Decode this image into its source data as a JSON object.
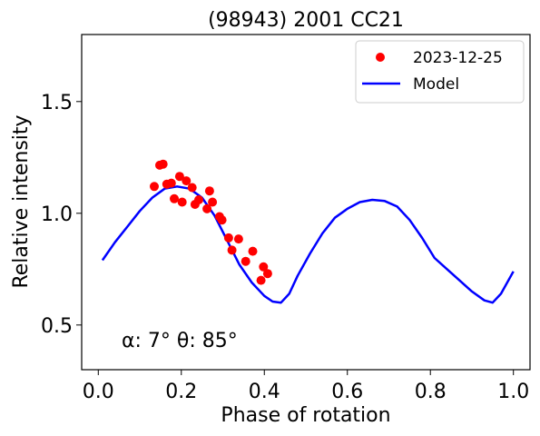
{
  "chart_data": {
    "type": "scatter",
    "title": "(98943) 2001 CC21",
    "xlabel": "Phase of rotation",
    "ylabel": "Relative intensity",
    "xlim": [
      -0.04,
      1.04
    ],
    "ylim": [
      0.3,
      1.8
    ],
    "xticks": [
      0.0,
      0.2,
      0.4,
      0.6,
      0.8,
      1.0
    ],
    "xtick_labels": [
      "0.0",
      "0.2",
      "0.4",
      "0.6",
      "0.8",
      "1.0"
    ],
    "yticks": [
      0.5,
      1.0,
      1.5
    ],
    "ytick_labels": [
      "0.5",
      "1.0",
      "1.5"
    ],
    "grid": false,
    "legend": {
      "position": "top-right",
      "entries": [
        {
          "label": "2023-12-25",
          "marker": "dot",
          "color": "#ff0000"
        },
        {
          "label": "Model",
          "marker": "line",
          "color": "#0000ff"
        }
      ]
    },
    "annotation": "α: 7° θ: 85°",
    "series": [
      {
        "name": "2023-12-25",
        "kind": "scatter",
        "color": "#ff0000",
        "x": [
          0.135,
          0.148,
          0.156,
          0.165,
          0.176,
          0.183,
          0.196,
          0.202,
          0.212,
          0.226,
          0.233,
          0.242,
          0.262,
          0.268,
          0.275,
          0.292,
          0.298,
          0.314,
          0.322,
          0.338,
          0.355,
          0.372,
          0.392,
          0.398,
          0.408
        ],
        "y": [
          1.12,
          1.215,
          1.22,
          1.13,
          1.135,
          1.065,
          1.165,
          1.05,
          1.145,
          1.115,
          1.04,
          1.06,
          1.02,
          1.1,
          1.05,
          0.985,
          0.97,
          0.89,
          0.835,
          0.885,
          0.785,
          0.83,
          0.7,
          0.76,
          0.73
        ]
      },
      {
        "name": "Model",
        "kind": "line",
        "color": "#0000ff",
        "x": [
          0.01,
          0.04,
          0.07,
          0.1,
          0.13,
          0.16,
          0.19,
          0.22,
          0.25,
          0.28,
          0.31,
          0.34,
          0.37,
          0.4,
          0.42,
          0.44,
          0.46,
          0.48,
          0.51,
          0.54,
          0.57,
          0.6,
          0.63,
          0.66,
          0.69,
          0.72,
          0.75,
          0.78,
          0.81,
          0.84,
          0.87,
          0.9,
          0.93,
          0.95,
          0.97,
          1.0
        ],
        "y": [
          0.79,
          0.87,
          0.94,
          1.01,
          1.07,
          1.11,
          1.12,
          1.11,
          1.07,
          0.99,
          0.88,
          0.77,
          0.69,
          0.63,
          0.605,
          0.6,
          0.64,
          0.72,
          0.82,
          0.91,
          0.98,
          1.02,
          1.05,
          1.06,
          1.055,
          1.03,
          0.97,
          0.89,
          0.8,
          0.75,
          0.7,
          0.65,
          0.61,
          0.6,
          0.64,
          0.74
        ]
      }
    ]
  }
}
